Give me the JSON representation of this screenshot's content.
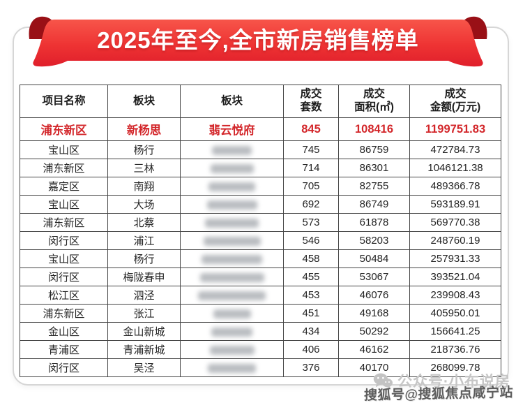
{
  "banner": {
    "title": "2025年至今,全市新房销售榜单"
  },
  "table": {
    "headers": [
      "项目名称",
      "板块",
      "板块",
      "成交\n套数",
      "成交\n面积(㎡)",
      "成交\n金额(万元)"
    ],
    "rows": [
      {
        "district": "浦东新区",
        "block": "新杨思",
        "project": "翡云悦府",
        "units": "845",
        "area": "108416",
        "amount": "1199751.83",
        "highlight": true,
        "redacted": false
      },
      {
        "district": "宝山区",
        "block": "杨行",
        "project": "",
        "units": "745",
        "area": "86759",
        "amount": "472784.73",
        "highlight": false,
        "redacted": true
      },
      {
        "district": "浦东新区",
        "block": "三林",
        "project": "",
        "units": "714",
        "area": "86301",
        "amount": "1046121.38",
        "highlight": false,
        "redacted": true
      },
      {
        "district": "嘉定区",
        "block": "南翔",
        "project": "",
        "units": "705",
        "area": "82755",
        "amount": "489366.78",
        "highlight": false,
        "redacted": true
      },
      {
        "district": "宝山区",
        "block": "大场",
        "project": "",
        "units": "692",
        "area": "86749",
        "amount": "593189.91",
        "highlight": false,
        "redacted": true
      },
      {
        "district": "浦东新区",
        "block": "北蔡",
        "project": "",
        "units": "573",
        "area": "61878",
        "amount": "569770.38",
        "highlight": false,
        "redacted": true
      },
      {
        "district": "闵行区",
        "block": "浦江",
        "project": "",
        "units": "546",
        "area": "58203",
        "amount": "248760.19",
        "highlight": false,
        "redacted": true
      },
      {
        "district": "宝山区",
        "block": "杨行",
        "project": "",
        "units": "458",
        "area": "50484",
        "amount": "257931.33",
        "highlight": false,
        "redacted": true
      },
      {
        "district": "闵行区",
        "block": "梅陇春申",
        "project": "",
        "units": "455",
        "area": "53067",
        "amount": "393521.04",
        "highlight": false,
        "redacted": true
      },
      {
        "district": "松江区",
        "block": "泗泾",
        "project": "",
        "units": "453",
        "area": "46076",
        "amount": "239908.43",
        "highlight": false,
        "redacted": true
      },
      {
        "district": "浦东新区",
        "block": "张江",
        "project": "",
        "units": "451",
        "area": "49168",
        "amount": "405950.01",
        "highlight": false,
        "redacted": true
      },
      {
        "district": "金山区",
        "block": "金山新城",
        "project": "",
        "units": "434",
        "area": "50292",
        "amount": "156641.25",
        "highlight": false,
        "redacted": true
      },
      {
        "district": "青浦区",
        "block": "青浦新城",
        "project": "",
        "units": "406",
        "area": "46162",
        "amount": "218736.76",
        "highlight": false,
        "redacted": true
      },
      {
        "district": "闵行区",
        "block": "吴泾",
        "project": "",
        "units": "376",
        "area": "40170",
        "amount": "268099.78",
        "highlight": false,
        "redacted": true
      }
    ]
  },
  "watermarks": {
    "wechat": "公众号·小布说房",
    "sohu": "搜狐号@搜狐焦点咸宁站"
  },
  "colors": {
    "ribbon_top": "#f7554a",
    "ribbon_bottom": "#e01f2b",
    "ribbon_fold": "#991016",
    "highlight_text": "#d3262a",
    "table_border": "#454545",
    "card_border": "#d6d6d6",
    "watermark_light": "#c6c6c6",
    "watermark_dark": "#5d5d5d"
  }
}
